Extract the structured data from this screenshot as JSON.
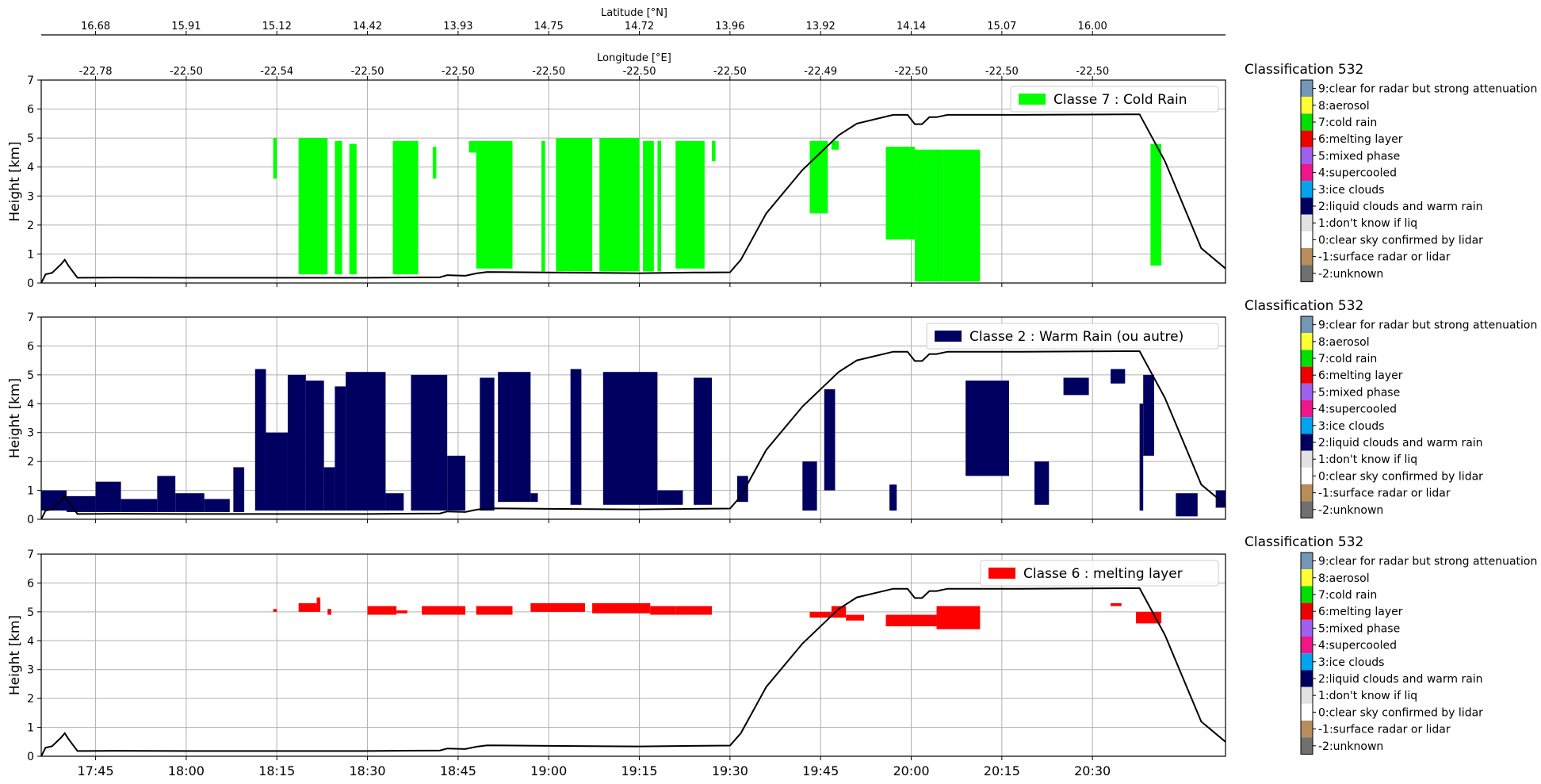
{
  "top_axes": {
    "latitude": {
      "label": "Latitude [°N]",
      "ticks": [
        "16.68",
        "15.91",
        "15.12",
        "14.42",
        "13.93",
        "14.75",
        "14.72",
        "13.96",
        "13.92",
        "14.14",
        "15.07",
        "16.00"
      ]
    },
    "longitude": {
      "label": "Longitude [°E]",
      "ticks": [
        "-22.78",
        "-22.50",
        "-22.54",
        "-22.50",
        "-22.50",
        "-22.50",
        "-22.50",
        "-22.50",
        "-22.49",
        "-22.50",
        "-22.50",
        "-22.50"
      ]
    }
  },
  "colorbar": {
    "title": "Classification 532",
    "classes": [
      {
        "label": "9:clear for radar but strong attenuation",
        "color": "#7397b4"
      },
      {
        "label": "8:aerosol",
        "color": "#ffff33"
      },
      {
        "label": "7:cold rain",
        "color": "#00e000"
      },
      {
        "label": "6:melting layer",
        "color": "#ee0000"
      },
      {
        "label": "5:mixed phase",
        "color": "#a060ee"
      },
      {
        "label": "4:supercooled",
        "color": "#f0168a"
      },
      {
        "label": "3:ice clouds",
        "color": "#00a4ee"
      },
      {
        "label": "2:liquid clouds and warm rain",
        "color": "#000060"
      },
      {
        "label": "1:don't know if liq",
        "color": "#e2e2e2"
      },
      {
        "label": "0:clear sky confirmed by lidar",
        "color": "#ffffff"
      },
      {
        "label": "-1:surface radar or lidar",
        "color": "#b88d5c"
      },
      {
        "label": "-2:unknown",
        "color": "#707070"
      }
    ]
  },
  "chart_data": [
    {
      "type": "area",
      "ylabel": "Height [km]",
      "ylim": [
        0,
        7
      ],
      "yticks": [
        "0",
        "1",
        "2",
        "3",
        "4",
        "5",
        "6",
        "7"
      ],
      "xlim": [
        17.6,
        20.867
      ],
      "xticks": [
        {
          "v": 17.75,
          "label": "17:45"
        },
        {
          "v": 18.0,
          "label": "18:00"
        },
        {
          "v": 18.25,
          "label": "18:15"
        },
        {
          "v": 18.5,
          "label": "18:30"
        },
        {
          "v": 18.75,
          "label": "18:45"
        },
        {
          "v": 19.0,
          "label": "19:00"
        },
        {
          "v": 19.25,
          "label": "19:15"
        },
        {
          "v": 19.5,
          "label": "19:30"
        },
        {
          "v": 19.75,
          "label": "19:45"
        },
        {
          "v": 20.0,
          "label": "20:00"
        },
        {
          "v": 20.25,
          "label": "20:15"
        },
        {
          "v": 20.5,
          "label": "20:30"
        }
      ],
      "show_xtick_labels": false,
      "grid": true,
      "legend": {
        "label": "Classe 7 : Cold Rain",
        "color": "#00ff00",
        "placement": "top-right"
      },
      "fill_color": "#00ff00",
      "segments": [
        [
          18.24,
          18.25,
          3.6,
          5.0
        ],
        [
          18.31,
          18.39,
          0.3,
          5.0
        ],
        [
          18.41,
          18.43,
          0.3,
          4.9
        ],
        [
          18.45,
          18.47,
          0.3,
          4.8
        ],
        [
          18.57,
          18.64,
          0.3,
          4.9
        ],
        [
          18.68,
          18.69,
          3.6,
          4.7
        ],
        [
          18.78,
          18.8,
          4.5,
          4.9
        ],
        [
          18.8,
          18.9,
          0.5,
          4.9
        ],
        [
          18.98,
          18.99,
          0.4,
          4.9
        ],
        [
          19.02,
          19.12,
          0.4,
          5.0
        ],
        [
          19.14,
          19.25,
          0.4,
          5.0
        ],
        [
          19.26,
          19.29,
          0.4,
          4.9
        ],
        [
          19.3,
          19.31,
          0.4,
          4.9
        ],
        [
          19.35,
          19.43,
          0.5,
          4.9
        ],
        [
          19.45,
          19.46,
          4.2,
          4.9
        ],
        [
          19.72,
          19.77,
          2.4,
          4.9
        ],
        [
          19.78,
          19.8,
          4.6,
          4.9
        ],
        [
          19.93,
          20.01,
          1.5,
          4.7
        ],
        [
          20.01,
          20.09,
          0.05,
          4.6
        ],
        [
          20.09,
          20.19,
          0.05,
          4.6
        ],
        [
          20.66,
          20.69,
          0.6,
          4.8
        ]
      ],
      "line": {
        "x": [
          17.6,
          17.612,
          17.63,
          17.655,
          17.665,
          17.675,
          17.7,
          17.8,
          18.0,
          18.25,
          18.5,
          18.7,
          18.72,
          18.77,
          18.8,
          18.83,
          19.0,
          19.25,
          19.4,
          19.5,
          19.53,
          19.6,
          19.7,
          19.8,
          19.85,
          19.95,
          19.99,
          20.01,
          20.03,
          20.05,
          20.07,
          20.1,
          20.3,
          20.6,
          20.63,
          20.7,
          20.8,
          20.867
        ],
        "y": [
          0.0,
          0.3,
          0.35,
          0.65,
          0.8,
          0.6,
          0.18,
          0.19,
          0.18,
          0.18,
          0.18,
          0.2,
          0.27,
          0.25,
          0.33,
          0.38,
          0.36,
          0.34,
          0.36,
          0.37,
          0.8,
          2.4,
          3.9,
          5.1,
          5.5,
          5.8,
          5.8,
          5.48,
          5.48,
          5.72,
          5.72,
          5.8,
          5.8,
          5.82,
          5.82,
          4.2,
          1.2,
          0.5
        ]
      },
      "series_color": "#000000"
    },
    {
      "type": "area",
      "ylabel": "Height [km]",
      "ylim": [
        0,
        7
      ],
      "yticks": [
        "0",
        "1",
        "2",
        "3",
        "4",
        "5",
        "6",
        "7"
      ],
      "xlim": [
        17.6,
        20.867
      ],
      "xticks": [
        {
          "v": 17.75,
          "label": "17:45"
        },
        {
          "v": 18.0,
          "label": "18:00"
        },
        {
          "v": 18.25,
          "label": "18:15"
        },
        {
          "v": 18.5,
          "label": "18:30"
        },
        {
          "v": 18.75,
          "label": "18:45"
        },
        {
          "v": 19.0,
          "label": "19:00"
        },
        {
          "v": 19.25,
          "label": "19:15"
        },
        {
          "v": 19.5,
          "label": "19:30"
        },
        {
          "v": 19.75,
          "label": "19:45"
        },
        {
          "v": 20.0,
          "label": "20:00"
        },
        {
          "v": 20.25,
          "label": "20:15"
        },
        {
          "v": 20.5,
          "label": "20:30"
        }
      ],
      "show_xtick_labels": false,
      "grid": true,
      "legend": {
        "label": "Classe 2 : Warm Rain (ou autre)",
        "color": "#000060",
        "placement": "top-right"
      },
      "fill_color": "#000060",
      "segments": [
        [
          17.6,
          17.67,
          0.3,
          1.0
        ],
        [
          17.67,
          17.75,
          0.25,
          0.8
        ],
        [
          17.75,
          17.82,
          0.25,
          1.3
        ],
        [
          17.82,
          17.92,
          0.25,
          0.7
        ],
        [
          17.92,
          17.97,
          0.25,
          1.5
        ],
        [
          17.97,
          18.05,
          0.25,
          0.9
        ],
        [
          18.05,
          18.12,
          0.25,
          0.7
        ],
        [
          18.13,
          18.16,
          0.25,
          1.8
        ],
        [
          18.19,
          18.22,
          0.3,
          5.2
        ],
        [
          18.22,
          18.28,
          0.3,
          3.0
        ],
        [
          18.28,
          18.33,
          0.3,
          5.0
        ],
        [
          18.33,
          18.38,
          0.3,
          4.8
        ],
        [
          18.38,
          18.41,
          0.3,
          1.8
        ],
        [
          18.41,
          18.44,
          0.3,
          4.6
        ],
        [
          18.44,
          18.55,
          0.3,
          5.1
        ],
        [
          18.55,
          18.6,
          0.3,
          0.9
        ],
        [
          18.62,
          18.72,
          0.3,
          5.0
        ],
        [
          18.72,
          18.77,
          0.3,
          2.2
        ],
        [
          18.81,
          18.85,
          0.3,
          4.9
        ],
        [
          18.86,
          18.95,
          0.6,
          5.1
        ],
        [
          18.95,
          18.97,
          0.6,
          0.9
        ],
        [
          19.06,
          19.09,
          0.5,
          5.2
        ],
        [
          19.15,
          19.3,
          0.5,
          5.1
        ],
        [
          19.3,
          19.37,
          0.5,
          1.0
        ],
        [
          19.4,
          19.45,
          0.5,
          4.9
        ],
        [
          19.52,
          19.55,
          0.6,
          1.5
        ],
        [
          19.7,
          19.74,
          0.3,
          2.0
        ],
        [
          19.76,
          19.79,
          1.0,
          4.5
        ],
        [
          19.94,
          19.96,
          0.3,
          1.2
        ],
        [
          20.15,
          20.27,
          1.5,
          4.8
        ],
        [
          20.34,
          20.38,
          0.5,
          2.0
        ],
        [
          20.42,
          20.49,
          4.3,
          4.9
        ],
        [
          20.55,
          20.59,
          4.7,
          5.2
        ],
        [
          20.63,
          20.64,
          0.3,
          4.0
        ],
        [
          20.64,
          20.67,
          2.2,
          5.0
        ],
        [
          20.73,
          20.79,
          0.1,
          0.9
        ],
        [
          20.84,
          20.867,
          0.4,
          1.0
        ]
      ],
      "line": {
        "x": [
          17.6,
          17.612,
          17.63,
          17.655,
          17.665,
          17.675,
          17.7,
          17.8,
          18.0,
          18.25,
          18.5,
          18.7,
          18.72,
          18.77,
          18.8,
          18.83,
          19.0,
          19.25,
          19.4,
          19.5,
          19.53,
          19.6,
          19.7,
          19.8,
          19.85,
          19.95,
          19.99,
          20.01,
          20.03,
          20.05,
          20.07,
          20.1,
          20.3,
          20.6,
          20.63,
          20.7,
          20.8,
          20.867
        ],
        "y": [
          0.0,
          0.3,
          0.35,
          0.65,
          0.8,
          0.6,
          0.18,
          0.19,
          0.18,
          0.18,
          0.18,
          0.2,
          0.27,
          0.25,
          0.33,
          0.38,
          0.36,
          0.34,
          0.36,
          0.37,
          0.8,
          2.4,
          3.9,
          5.1,
          5.5,
          5.8,
          5.8,
          5.48,
          5.48,
          5.72,
          5.72,
          5.8,
          5.8,
          5.82,
          5.82,
          4.2,
          1.2,
          0.5
        ]
      },
      "series_color": "#000000"
    },
    {
      "type": "area",
      "ylabel": "Height [km]",
      "ylim": [
        0,
        7
      ],
      "yticks": [
        "0",
        "1",
        "2",
        "3",
        "4",
        "5",
        "6",
        "7"
      ],
      "xlim": [
        17.6,
        20.867
      ],
      "xticks": [
        {
          "v": 17.75,
          "label": "17:45"
        },
        {
          "v": 18.0,
          "label": "18:00"
        },
        {
          "v": 18.25,
          "label": "18:15"
        },
        {
          "v": 18.5,
          "label": "18:30"
        },
        {
          "v": 18.75,
          "label": "18:45"
        },
        {
          "v": 19.0,
          "label": "19:00"
        },
        {
          "v": 19.25,
          "label": "19:15"
        },
        {
          "v": 19.5,
          "label": "19:30"
        },
        {
          "v": 19.75,
          "label": "19:45"
        },
        {
          "v": 20.0,
          "label": "20:00"
        },
        {
          "v": 20.25,
          "label": "20:15"
        },
        {
          "v": 20.5,
          "label": "20:30"
        }
      ],
      "show_xtick_labels": true,
      "grid": true,
      "legend": {
        "label": "Classe 6 : melting layer",
        "color": "#ff0000",
        "placement": "top-right"
      },
      "fill_color": "#ff0000",
      "segments": [
        [
          18.24,
          18.25,
          5.0,
          5.1
        ],
        [
          18.31,
          18.36,
          5.0,
          5.3
        ],
        [
          18.36,
          18.37,
          5.0,
          5.5
        ],
        [
          18.39,
          18.4,
          4.9,
          5.1
        ],
        [
          18.5,
          18.58,
          4.9,
          5.2
        ],
        [
          18.58,
          18.61,
          4.95,
          5.05
        ],
        [
          18.65,
          18.77,
          4.9,
          5.2
        ],
        [
          18.8,
          18.9,
          4.9,
          5.2
        ],
        [
          18.95,
          19.1,
          5.0,
          5.3
        ],
        [
          19.12,
          19.28,
          4.95,
          5.3
        ],
        [
          19.28,
          19.35,
          4.9,
          5.2
        ],
        [
          19.35,
          19.45,
          4.9,
          5.2
        ],
        [
          19.72,
          19.78,
          4.8,
          5.0
        ],
        [
          19.78,
          19.82,
          4.8,
          5.2
        ],
        [
          19.82,
          19.87,
          4.7,
          4.9
        ],
        [
          19.93,
          20.07,
          4.5,
          4.9
        ],
        [
          20.07,
          20.19,
          4.4,
          5.2
        ],
        [
          20.55,
          20.58,
          5.2,
          5.3
        ],
        [
          20.62,
          20.69,
          4.6,
          5.0
        ]
      ],
      "line": {
        "x": [
          17.6,
          17.612,
          17.63,
          17.655,
          17.665,
          17.675,
          17.7,
          17.8,
          18.0,
          18.25,
          18.5,
          18.7,
          18.72,
          18.77,
          18.8,
          18.83,
          19.0,
          19.25,
          19.4,
          19.5,
          19.53,
          19.6,
          19.7,
          19.8,
          19.85,
          19.95,
          19.99,
          20.01,
          20.03,
          20.05,
          20.07,
          20.1,
          20.3,
          20.6,
          20.63,
          20.7,
          20.8,
          20.867
        ],
        "y": [
          0.0,
          0.3,
          0.35,
          0.65,
          0.8,
          0.6,
          0.18,
          0.19,
          0.18,
          0.18,
          0.18,
          0.2,
          0.27,
          0.25,
          0.33,
          0.38,
          0.36,
          0.34,
          0.36,
          0.37,
          0.8,
          2.4,
          3.9,
          5.1,
          5.5,
          5.8,
          5.8,
          5.48,
          5.48,
          5.72,
          5.72,
          5.8,
          5.8,
          5.82,
          5.82,
          4.2,
          1.2,
          0.5
        ]
      },
      "series_color": "#000000"
    }
  ]
}
